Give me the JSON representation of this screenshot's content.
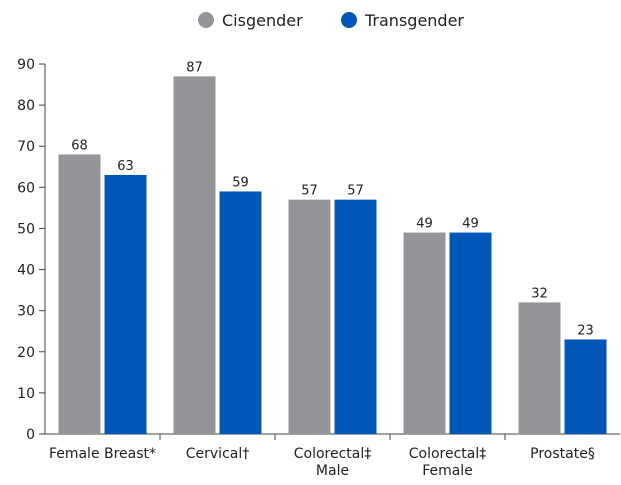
{
  "chart_data": {
    "type": "bar",
    "categories": [
      [
        "Female Breast*"
      ],
      [
        "Cervical†"
      ],
      [
        "Colorectal‡",
        "Male"
      ],
      [
        "Colorectal‡",
        "Female"
      ],
      [
        "Prostate§"
      ]
    ],
    "series": [
      {
        "name": "Cisgender",
        "color": "#939598",
        "values": [
          68,
          87,
          57,
          49,
          32
        ]
      },
      {
        "name": "Transgender",
        "color": "#0057b8",
        "values": [
          63,
          59,
          57,
          49,
          23
        ]
      }
    ],
    "ylim": [
      0,
      90
    ],
    "yticks": [
      0,
      10,
      20,
      30,
      40,
      50,
      60,
      70,
      80,
      90
    ],
    "legend": "top"
  }
}
